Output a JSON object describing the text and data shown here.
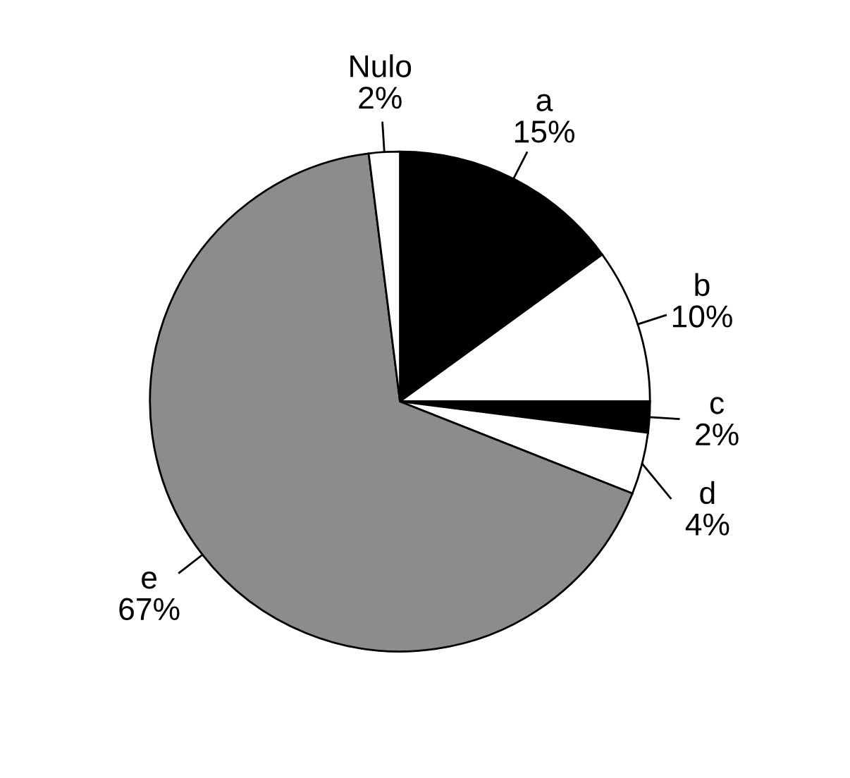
{
  "chart_data": {
    "type": "pie",
    "categories": [
      "a",
      "b",
      "c",
      "d",
      "e",
      "Nulo"
    ],
    "values": [
      15,
      10,
      2,
      4,
      67,
      2
    ],
    "colors": [
      "#000000",
      "#ffffff",
      "#000000",
      "#ffffff",
      "#8c8c8c",
      "#ffffff"
    ],
    "value_labels": [
      "15%",
      "10%",
      "2%",
      "4%",
      "67%",
      "2%"
    ],
    "legend": false
  }
}
